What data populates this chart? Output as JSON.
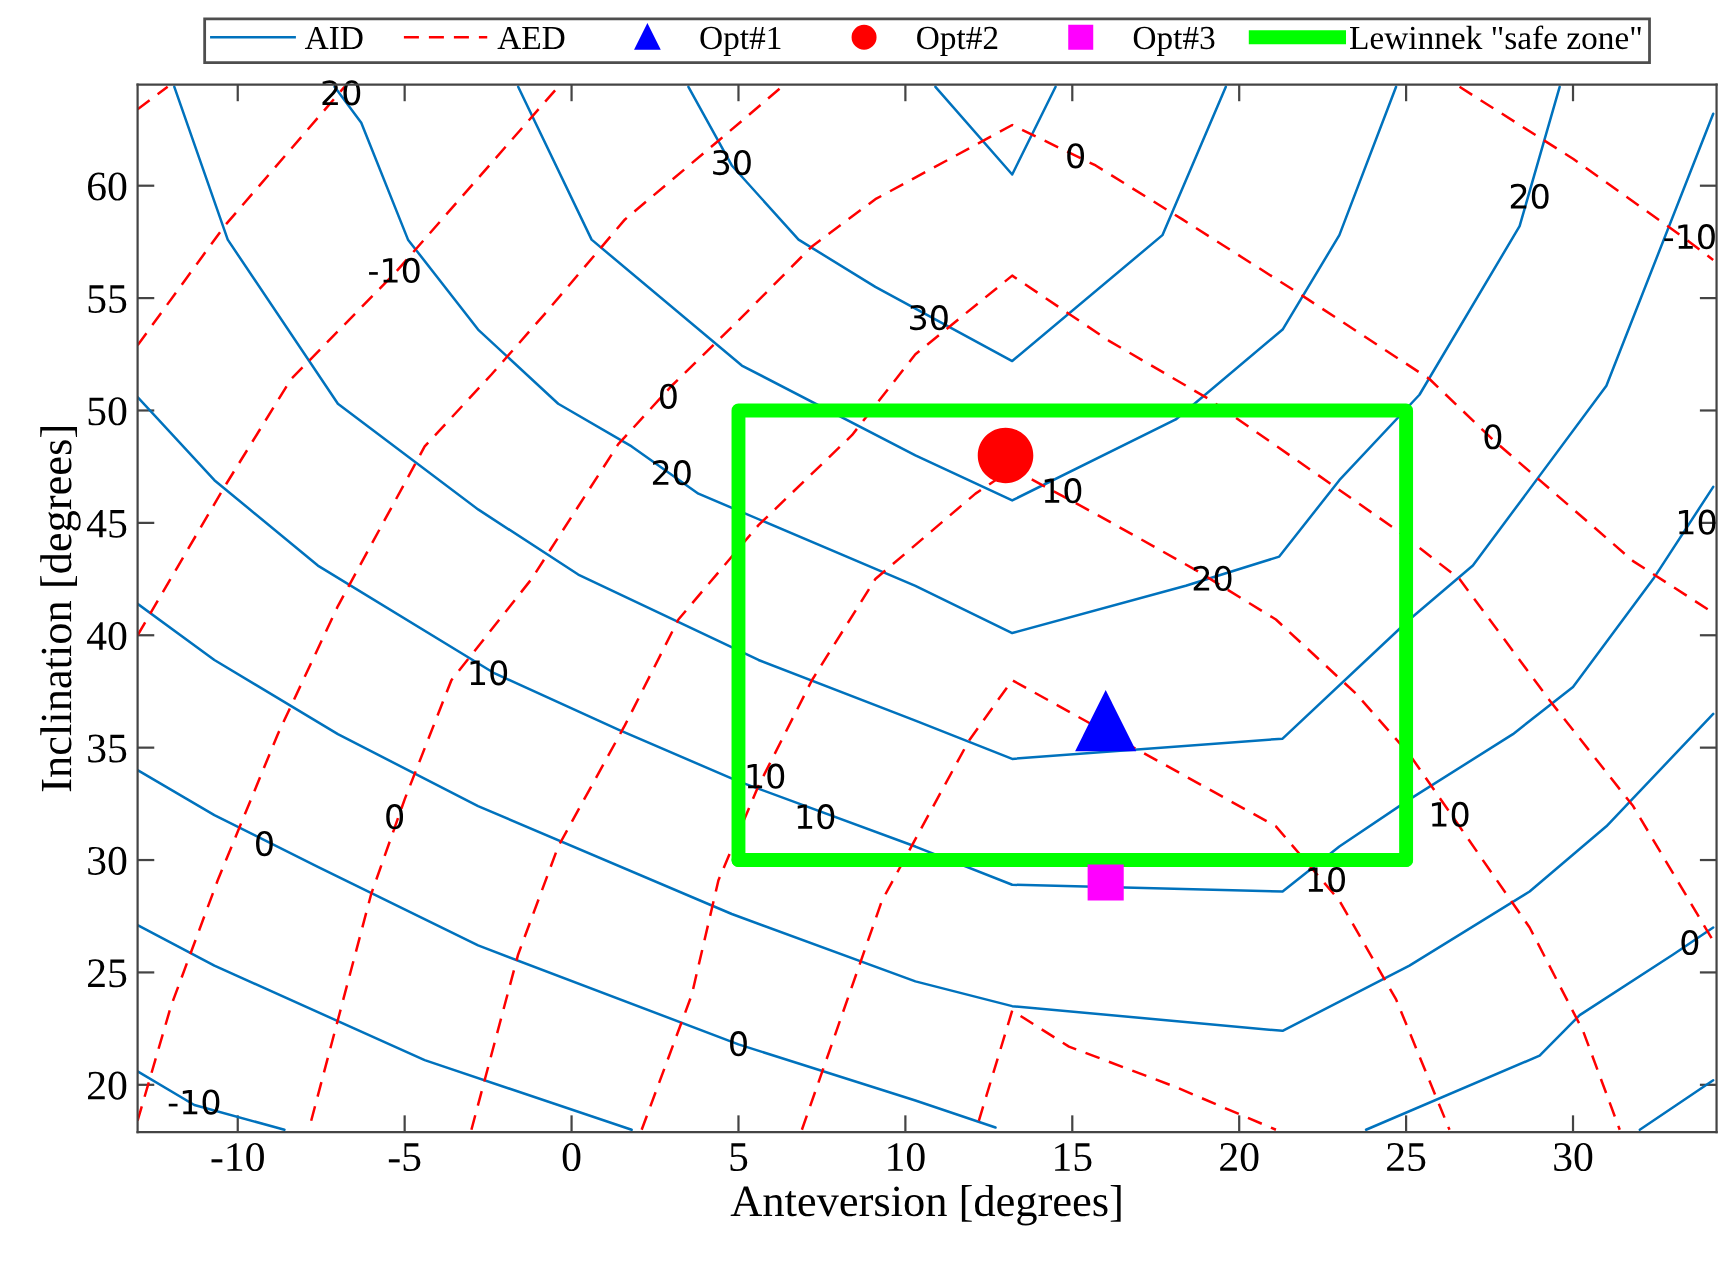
{
  "chart_data": {
    "type": "line",
    "xlabel": "Anteversion [degrees]",
    "ylabel": "Inclination [degrees]",
    "xlim": [
      -13,
      34.3
    ],
    "ylim": [
      17.9,
      64.5
    ],
    "xticks": [
      -10,
      -5,
      0,
      5,
      10,
      15,
      20,
      25,
      30
    ],
    "yticks": [
      20,
      25,
      30,
      35,
      40,
      45,
      50,
      55,
      60
    ],
    "legend": "top",
    "grid": false,
    "series": [
      {
        "name": "AID",
        "color": "#0072bd",
        "line_style": "solid",
        "x": [
          10.9,
          13.2,
          14.5
        ],
        "values": [
          64.4,
          60.5,
          64.4
        ]
      },
      {
        "type": "line",
        "color": "#0072bd",
        "line_style": "solid",
        "x": [
          3.5,
          4.8,
          6.8,
          9.1,
          13.2,
          17.7,
          19.6
        ],
        "values": [
          64.4,
          60.9,
          57.6,
          55.5,
          52.2,
          57.8,
          64.4
        ]
      },
      {
        "type": "line",
        "color": "#0072bd",
        "line_style": "solid",
        "x": [
          -1.6,
          0.6,
          5.1,
          10.3,
          13.2,
          18.1,
          21.3,
          23.0,
          24.7
        ],
        "values": [
          64.4,
          57.6,
          52.0,
          48.0,
          46.0,
          49.6,
          53.6,
          57.8,
          64.4
        ]
      },
      {
        "type": "line",
        "color": "#0072bd",
        "line_style": "solid",
        "x": [
          -7.1,
          -6.3,
          -4.9,
          -2.8,
          -0.4,
          1.8,
          3.8,
          10.3,
          13.2,
          18.4,
          21.2,
          23.0,
          25.4,
          28.4,
          29.6
        ],
        "values": [
          64.4,
          62.8,
          57.6,
          53.6,
          50.3,
          48.4,
          46.3,
          42.2,
          40.1,
          42.2,
          43.5,
          46.9,
          50.7,
          58.2,
          64.4
        ]
      },
      {
        "type": "line",
        "color": "#0072bd",
        "line_style": "solid",
        "x": [
          -11.9,
          -10.3,
          -7.0,
          -2.8,
          0.2,
          5.6,
          10.3,
          13.2,
          21.3,
          25.1,
          27.0,
          31.0,
          34.2
        ],
        "values": [
          64.4,
          57.6,
          50.3,
          45.6,
          42.7,
          38.9,
          36.2,
          34.5,
          35.4,
          40.7,
          43.1,
          51.1,
          63.2
        ]
      },
      {
        "type": "line",
        "color": "#0072bd",
        "line_style": "solid",
        "x": [
          -13.0,
          -10.7,
          -7.6,
          -2.3,
          1.4,
          5.0,
          10.3,
          13.2,
          21.3,
          23.0,
          25.1,
          28.2,
          30.0,
          32.4,
          34.2
        ],
        "values": [
          50.6,
          46.9,
          43.1,
          38.3,
          35.8,
          33.5,
          30.6,
          28.9,
          28.6,
          30.6,
          32.7,
          35.6,
          37.7,
          42.5,
          46.6
        ]
      },
      {
        "type": "line",
        "color": "#0072bd",
        "line_style": "solid",
        "x": [
          -13.0,
          -10.7,
          -7.0,
          -2.8,
          4.8,
          10.3,
          13.2,
          21.3,
          25.1,
          28.7,
          31.0,
          34.2
        ],
        "values": [
          41.4,
          38.9,
          35.6,
          32.4,
          27.6,
          24.6,
          23.5,
          22.4,
          25.3,
          28.6,
          31.5,
          36.5
        ]
      },
      {
        "type": "line",
        "color": "#0072bd",
        "line_style": "solid",
        "x": [
          -13.0,
          -10.7,
          -7.6,
          -2.8,
          5.0,
          10.3,
          12.7
        ],
        "values": [
          34.0,
          32.0,
          29.7,
          26.2,
          21.8,
          19.3,
          18.1
        ]
      },
      {
        "type": "line",
        "color": "#0072bd",
        "line_style": "solid",
        "x": [
          23.8,
          29.0,
          30.2,
          33.0,
          34.2
        ],
        "values": [
          18.0,
          21.3,
          23.1,
          25.8,
          27.0
        ]
      },
      {
        "type": "line",
        "color": "#0072bd",
        "line_style": "solid",
        "x": [
          -13.0,
          -10.7,
          -4.4,
          1.8
        ],
        "values": [
          27.1,
          25.3,
          21.1,
          18.0
        ]
      },
      {
        "type": "line",
        "color": "#0072bd",
        "line_style": "solid",
        "x": [
          32.0,
          34.2
        ],
        "values": [
          18.0,
          20.2
        ]
      },
      {
        "type": "line",
        "color": "#0072bd",
        "line_style": "solid",
        "x": [
          -13.0,
          -11.3,
          -8.6
        ],
        "values": [
          20.6,
          19.1,
          18.0
        ]
      },
      {
        "name": "AED",
        "color": "#ff0000",
        "line_style": "dashed",
        "x": [
          -13.0,
          -12.1
        ],
        "values": [
          63.4,
          64.4
        ]
      },
      {
        "type": "line",
        "color": "#ff0000",
        "line_style": "dashed",
        "x": [
          -13.0,
          -10.4,
          -6.8
        ],
        "values": [
          52.9,
          58.2,
          64.4
        ]
      },
      {
        "type": "line",
        "color": "#ff0000",
        "line_style": "dashed",
        "x": [
          -13.0,
          -10.4,
          -8.4,
          -5.3,
          -0.4
        ],
        "values": [
          40.0,
          46.6,
          51.4,
          56.1,
          64.4
        ]
      },
      {
        "type": "line",
        "color": "#ff0000",
        "line_style": "dashed",
        "x": [
          -13.0,
          -12.0,
          -10.6,
          -8.8,
          -7.0,
          -4.4,
          -2.4,
          -0.8,
          1.6,
          4.4,
          6.3
        ],
        "values": [
          18.4,
          23.5,
          29.1,
          35.6,
          41.3,
          48.4,
          51.6,
          54.3,
          58.5,
          62.0,
          64.4
        ]
      },
      {
        "type": "line",
        "color": "#ff0000",
        "line_style": "dashed",
        "x": [
          26.6,
          30.0,
          33.4,
          34.2
        ],
        "values": [
          64.4,
          61.2,
          57.6,
          56.7
        ]
      },
      {
        "type": "line",
        "color": "#ff0000",
        "line_style": "dashed",
        "x": [
          -7.8,
          -6.0,
          -5.0,
          -3.6,
          -1.2,
          1.4,
          3.0,
          5.0,
          7.2,
          9.1,
          13.2,
          15.7,
          18.3,
          21.9,
          25.7,
          27.6,
          29.0,
          31.8,
          34.2
        ],
        "values": [
          18.4,
          28.5,
          32.7,
          38.0,
          42.5,
          48.5,
          51.1,
          54.0,
          57.3,
          59.4,
          62.7,
          60.9,
          58.5,
          55.1,
          51.4,
          48.7,
          46.9,
          43.3,
          41.0
        ]
      },
      {
        "type": "line",
        "color": "#ff0000",
        "line_style": "dashed",
        "x": [
          -3.0,
          -1.6,
          -0.4,
          1.6,
          3.2,
          5.6,
          8.4,
          10.3,
          13.2,
          16.1,
          19.1,
          22.1,
          24.7,
          26.6,
          29.3,
          31.8,
          34.2
        ],
        "values": [
          18.0,
          25.8,
          30.6,
          36.0,
          40.7,
          44.9,
          48.9,
          52.5,
          56.0,
          53.1,
          50.5,
          47.4,
          44.7,
          42.5,
          37.1,
          32.4,
          26.4
        ]
      },
      {
        "type": "line",
        "color": "#ff0000",
        "line_style": "dashed",
        "x": [
          2.1,
          3.6,
          4.4,
          5.6,
          7.2,
          9.1,
          12.1,
          13.2,
          15.7,
          18.7,
          21.1,
          23.5,
          25.1,
          28.7,
          30.3,
          31.4
        ],
        "values": [
          18.0,
          24.0,
          29.1,
          33.3,
          38.0,
          42.5,
          46.3,
          47.4,
          45.4,
          42.9,
          40.7,
          37.4,
          34.7,
          27.0,
          22.4,
          18.0
        ]
      },
      {
        "type": "line",
        "color": "#ff0000",
        "line_style": "dashed",
        "x": [
          6.9,
          9.3,
          11.9,
          13.2,
          21.1,
          23.0,
          24.7,
          26.3
        ],
        "values": [
          18.0,
          28.2,
          35.3,
          38.0,
          31.5,
          28.2,
          23.8,
          18.0
        ]
      },
      {
        "type": "line",
        "color": "#ff0000",
        "line_style": "dashed",
        "x": [
          12.2,
          13.2,
          14.9,
          18.1,
          21.1
        ],
        "values": [
          18.4,
          23.3,
          21.7,
          19.9,
          18.0
        ]
      },
      {
        "name": "Opt#1",
        "type": "scatter",
        "color": "#0000ff",
        "marker": "triangle",
        "x": [
          16.0
        ],
        "values": [
          36.2
        ]
      },
      {
        "name": "Opt#2",
        "type": "scatter",
        "color": "#ff0000",
        "marker": "circle",
        "x": [
          13.0
        ],
        "values": [
          48.0
        ]
      },
      {
        "name": "Opt#3",
        "type": "scatter",
        "color": "#ff00ff",
        "marker": "square",
        "x": [
          16.0
        ],
        "values": [
          29.0
        ]
      },
      {
        "name": "Lewinnek \"safe zone\"",
        "color": "#00ff00",
        "line_style": "solid",
        "x": [
          5,
          5,
          25,
          25
        ],
        "values": [
          30,
          50,
          50,
          30
        ]
      },
      {
        "color": "#00ff00",
        "line_style": "solid",
        "x": [
          5,
          25
        ],
        "values": [
          30,
          30
        ]
      }
    ],
    "annotations": [
      {
        "text": "30",
        "x": 4.8,
        "y": 60.9
      },
      {
        "text": "30",
        "x": 10.7,
        "y": 54.0
      },
      {
        "text": "20",
        "x": -6.9,
        "y": 64.0
      },
      {
        "text": "20",
        "x": 3.0,
        "y": 47.1
      },
      {
        "text": "20",
        "x": 19.2,
        "y": 42.4
      },
      {
        "text": "20",
        "x": 28.7,
        "y": 59.4
      },
      {
        "text": "10",
        "x": -2.5,
        "y": 38.2
      },
      {
        "text": "10",
        "x": 7.3,
        "y": 31.8
      },
      {
        "text": "10",
        "x": 33.7,
        "y": 44.9
      },
      {
        "text": "0",
        "x": -9.2,
        "y": 30.6
      },
      {
        "text": "0",
        "x": 5.0,
        "y": 21.7
      },
      {
        "text": "0",
        "x": 33.5,
        "y": 26.2
      },
      {
        "text": "-10",
        "x": -11.3,
        "y": 19.1
      },
      {
        "text": "-10",
        "x": -5.3,
        "y": 56.1
      },
      {
        "text": "0",
        "x": 2.9,
        "y": 50.5
      },
      {
        "text": "0",
        "x": -5.3,
        "y": 31.8
      },
      {
        "text": "0",
        "x": 15.1,
        "y": 61.2
      },
      {
        "text": "0",
        "x": 27.6,
        "y": 48.7
      },
      {
        "text": "10",
        "x": 14.7,
        "y": 46.3
      },
      {
        "text": "10",
        "x": 5.8,
        "y": 33.6
      },
      {
        "text": "10",
        "x": 26.3,
        "y": 31.9
      },
      {
        "text": "10",
        "x": 22.6,
        "y": 29.0
      },
      {
        "text": "-10",
        "x": 33.5,
        "y": 57.6
      }
    ]
  }
}
